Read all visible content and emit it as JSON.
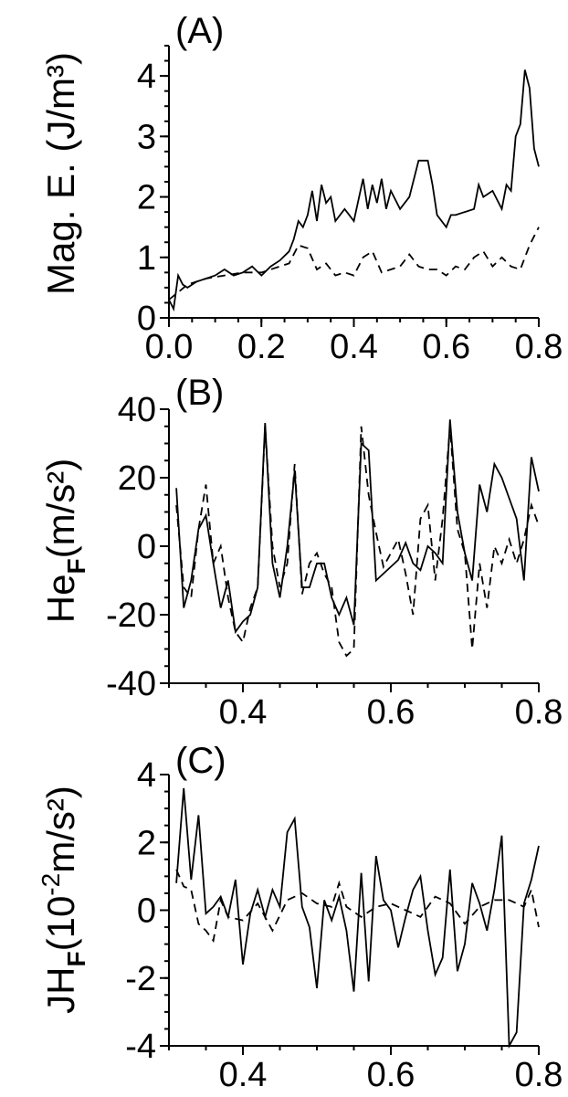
{
  "chart_data": [
    {
      "type": "line",
      "panel_label": "(A)",
      "ylabel": "Mag. E. (J/m³)",
      "xlim": [
        0.0,
        0.8
      ],
      "ylim": [
        0,
        4.5
      ],
      "xticks": [
        0.0,
        0.2,
        0.4,
        0.6,
        0.8
      ],
      "xtick_labels": [
        "0.0",
        "0.2",
        "0.4",
        "0.6",
        "0.8"
      ],
      "yticks": [
        0,
        1,
        2,
        3,
        4
      ],
      "ytick_labels": [
        "0",
        "1",
        "2",
        "3",
        "4"
      ],
      "series": [
        {
          "style": "solid",
          "x": [
            0.0,
            0.01,
            0.02,
            0.03,
            0.04,
            0.06,
            0.08,
            0.1,
            0.12,
            0.14,
            0.16,
            0.18,
            0.2,
            0.22,
            0.24,
            0.26,
            0.27,
            0.28,
            0.29,
            0.3,
            0.31,
            0.32,
            0.33,
            0.34,
            0.35,
            0.36,
            0.38,
            0.4,
            0.42,
            0.43,
            0.44,
            0.45,
            0.46,
            0.47,
            0.48,
            0.5,
            0.52,
            0.54,
            0.56,
            0.57,
            0.58,
            0.6,
            0.61,
            0.62,
            0.64,
            0.66,
            0.67,
            0.68,
            0.7,
            0.72,
            0.73,
            0.74,
            0.75,
            0.76,
            0.77,
            0.78,
            0.79,
            0.8
          ],
          "y": [
            0.3,
            0.15,
            0.7,
            0.55,
            0.5,
            0.6,
            0.65,
            0.7,
            0.8,
            0.7,
            0.75,
            0.85,
            0.7,
            0.85,
            0.95,
            1.1,
            1.3,
            1.6,
            1.5,
            1.7,
            2.1,
            1.6,
            2.2,
            1.9,
            2.0,
            1.6,
            1.8,
            1.6,
            2.3,
            1.8,
            2.2,
            1.9,
            2.3,
            1.8,
            2.1,
            1.8,
            2.0,
            2.6,
            2.6,
            2.2,
            1.7,
            1.5,
            1.7,
            1.7,
            1.75,
            1.8,
            2.2,
            2.0,
            2.1,
            1.8,
            2.2,
            2.1,
            3.0,
            3.2,
            4.1,
            3.8,
            2.8,
            2.5
          ]
        },
        {
          "style": "dashed",
          "x": [
            0.0,
            0.04,
            0.08,
            0.12,
            0.16,
            0.2,
            0.24,
            0.26,
            0.28,
            0.3,
            0.32,
            0.34,
            0.36,
            0.38,
            0.4,
            0.42,
            0.44,
            0.46,
            0.48,
            0.5,
            0.52,
            0.54,
            0.56,
            0.58,
            0.6,
            0.62,
            0.64,
            0.66,
            0.68,
            0.7,
            0.72,
            0.74,
            0.76,
            0.78,
            0.8
          ],
          "y": [
            0.3,
            0.55,
            0.65,
            0.7,
            0.75,
            0.75,
            0.85,
            0.9,
            1.2,
            1.15,
            0.8,
            0.9,
            0.7,
            0.75,
            0.7,
            1.0,
            1.1,
            0.75,
            0.8,
            0.85,
            1.05,
            0.85,
            0.8,
            0.8,
            0.7,
            0.85,
            0.8,
            1.0,
            1.1,
            0.85,
            1.0,
            0.85,
            0.8,
            1.2,
            1.5
          ]
        }
      ]
    },
    {
      "type": "line",
      "panel_label": "(B)",
      "ylabel_main": "He",
      "ylabel_sub": "F",
      "ylabel_unit": "(m/s²)",
      "xlim": [
        0.3,
        0.8
      ],
      "ylim": [
        -40,
        40
      ],
      "xticks": [
        0.4,
        0.6,
        0.8
      ],
      "xtick_labels": [
        "0.4",
        "0.6",
        "0.8"
      ],
      "yticks": [
        -40,
        -20,
        0,
        20,
        40
      ],
      "ytick_labels": [
        "-40",
        "-20",
        "0",
        "20",
        "40"
      ],
      "series": [
        {
          "style": "solid",
          "x": [
            0.31,
            0.32,
            0.33,
            0.34,
            0.35,
            0.36,
            0.37,
            0.38,
            0.39,
            0.4,
            0.41,
            0.42,
            0.43,
            0.44,
            0.45,
            0.46,
            0.47,
            0.48,
            0.49,
            0.5,
            0.51,
            0.52,
            0.53,
            0.54,
            0.55,
            0.56,
            0.57,
            0.58,
            0.59,
            0.6,
            0.61,
            0.62,
            0.63,
            0.64,
            0.65,
            0.66,
            0.67,
            0.68,
            0.69,
            0.7,
            0.71,
            0.72,
            0.73,
            0.74,
            0.75,
            0.76,
            0.77,
            0.78,
            0.79,
            0.8
          ],
          "y": [
            17,
            -18,
            -10,
            5,
            9,
            -5,
            -18,
            -10,
            -25,
            -22,
            -20,
            -12,
            36,
            -5,
            -15,
            0,
            22,
            -12,
            -12,
            -5,
            -5,
            -15,
            -20,
            -15,
            -23,
            30,
            28,
            -10,
            -8,
            -6,
            -4,
            1,
            -5,
            -7,
            0,
            -2,
            -5,
            37,
            10,
            -2,
            -10,
            18,
            10,
            24,
            20,
            14,
            8,
            -10,
            26,
            16
          ]
        },
        {
          "style": "dashed",
          "x": [
            0.31,
            0.32,
            0.33,
            0.34,
            0.35,
            0.36,
            0.37,
            0.38,
            0.39,
            0.4,
            0.41,
            0.42,
            0.43,
            0.44,
            0.45,
            0.46,
            0.47,
            0.48,
            0.49,
            0.5,
            0.51,
            0.52,
            0.53,
            0.54,
            0.55,
            0.56,
            0.57,
            0.58,
            0.59,
            0.6,
            0.61,
            0.62,
            0.63,
            0.64,
            0.65,
            0.66,
            0.67,
            0.68,
            0.69,
            0.7,
            0.71,
            0.72,
            0.73,
            0.74,
            0.75,
            0.76,
            0.77,
            0.78,
            0.79,
            0.8
          ],
          "y": [
            12,
            -12,
            -15,
            5,
            18,
            -5,
            0,
            -15,
            -25,
            -28,
            -18,
            -12,
            35,
            0,
            -12,
            -5,
            24,
            -14,
            -5,
            -2,
            -8,
            -12,
            -28,
            -32,
            -30,
            35,
            15,
            4,
            -6,
            -2,
            2,
            -8,
            -20,
            8,
            12,
            -10,
            8,
            35,
            5,
            -2,
            -30,
            -5,
            -18,
            0,
            -5,
            2,
            -5,
            2,
            12,
            6
          ]
        }
      ]
    },
    {
      "type": "line",
      "panel_label": "(C)",
      "ylabel_main": "JH",
      "ylabel_sub": "F",
      "ylabel_unit_pre": "(10",
      "ylabel_unit_exp": "-2",
      "ylabel_unit_post": "m/s²)",
      "xlim": [
        0.3,
        0.8
      ],
      "ylim": [
        -4,
        4
      ],
      "xticks": [
        0.4,
        0.6,
        0.8
      ],
      "xtick_labels": [
        "0.4",
        "0.6",
        "0.8"
      ],
      "yticks": [
        -4,
        -2,
        0,
        2,
        4
      ],
      "ytick_labels": [
        "-4",
        "-2",
        "0",
        "2",
        "4"
      ],
      "series": [
        {
          "style": "solid",
          "x": [
            0.31,
            0.32,
            0.33,
            0.34,
            0.35,
            0.36,
            0.37,
            0.38,
            0.39,
            0.4,
            0.41,
            0.42,
            0.43,
            0.44,
            0.45,
            0.46,
            0.47,
            0.48,
            0.49,
            0.5,
            0.51,
            0.52,
            0.53,
            0.54,
            0.55,
            0.56,
            0.57,
            0.58,
            0.59,
            0.6,
            0.61,
            0.62,
            0.63,
            0.64,
            0.65,
            0.66,
            0.67,
            0.68,
            0.69,
            0.7,
            0.71,
            0.72,
            0.73,
            0.74,
            0.75,
            0.76,
            0.77,
            0.78,
            0.79,
            0.8
          ],
          "y": [
            0.8,
            3.6,
            0.9,
            2.8,
            -0.1,
            0.1,
            0.4,
            -0.2,
            0.9,
            -1.6,
            -0.1,
            0.6,
            -0.2,
            0.6,
            0.1,
            2.3,
            2.7,
            0.1,
            -0.5,
            -2.3,
            0.3,
            -0.3,
            0.4,
            -0.6,
            -2.4,
            1.1,
            -2.1,
            1.6,
            0.3,
            0.0,
            -1.1,
            -0.2,
            0.6,
            1.0,
            -0.6,
            -1.9,
            -1.4,
            1.2,
            -1.8,
            -1.0,
            0.8,
            0.2,
            -0.6,
            0.6,
            2.2,
            -4.0,
            -3.6,
            0.2,
            0.9,
            1.9
          ]
        },
        {
          "style": "dashed",
          "x": [
            0.31,
            0.32,
            0.33,
            0.34,
            0.35,
            0.36,
            0.37,
            0.38,
            0.4,
            0.42,
            0.44,
            0.46,
            0.48,
            0.5,
            0.52,
            0.53,
            0.54,
            0.56,
            0.58,
            0.6,
            0.62,
            0.64,
            0.66,
            0.68,
            0.7,
            0.72,
            0.74,
            0.76,
            0.78,
            0.79,
            0.8
          ],
          "y": [
            1.2,
            0.7,
            0.6,
            -0.4,
            -0.6,
            -0.9,
            0.3,
            -0.2,
            -0.3,
            0.2,
            -0.6,
            0.3,
            0.5,
            0.2,
            0.1,
            0.8,
            0.1,
            -0.2,
            0.1,
            0.2,
            0.0,
            -0.2,
            0.4,
            0.2,
            -0.4,
            0.1,
            0.3,
            0.3,
            0.1,
            0.6,
            -0.5
          ]
        }
      ]
    }
  ]
}
